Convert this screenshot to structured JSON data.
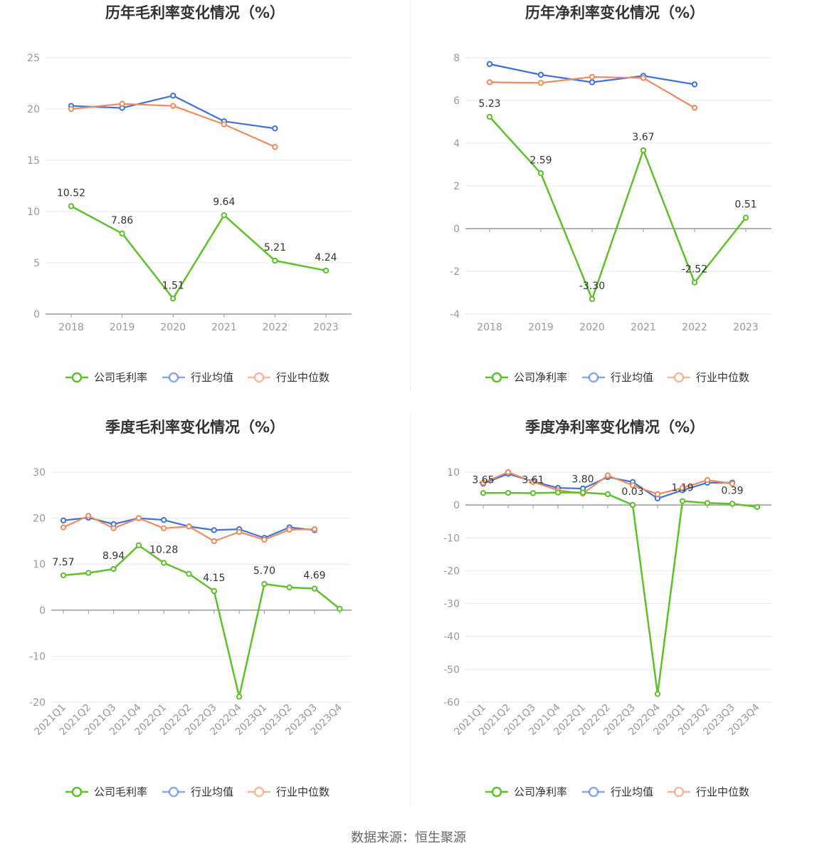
{
  "colors": {
    "company": "#5cc229",
    "avg": "#3d72e0",
    "median": "#f28a5b"
  },
  "legend_common": {
    "avg": "行业均值",
    "median": "行业中位数"
  },
  "source": "数据来源：恒生聚源",
  "chart_data": [
    {
      "type": "line",
      "title": "历年毛利率变化情况（%）",
      "x": [
        "2018",
        "2019",
        "2020",
        "2021",
        "2022",
        "2023"
      ],
      "ylim": [
        0,
        25
      ],
      "yticks": [
        0,
        5,
        10,
        15,
        20,
        25
      ],
      "grid": true,
      "legend_position": "bottom",
      "series": [
        {
          "name": "公司毛利率",
          "role": "company",
          "values": [
            10.52,
            7.86,
            1.51,
            9.64,
            5.21,
            4.24
          ],
          "labels": [
            "10.52",
            "7.86",
            "1.51",
            "9.64",
            "5.21",
            "4.24"
          ]
        },
        {
          "name": "行业均值",
          "role": "avg",
          "values": [
            20.3,
            20.1,
            21.3,
            18.8,
            18.1,
            null
          ]
        },
        {
          "name": "行业中位数",
          "role": "median",
          "values": [
            20.0,
            20.5,
            20.3,
            18.5,
            16.3,
            null
          ]
        }
      ]
    },
    {
      "type": "line",
      "title": "历年净利率变化情况（%）",
      "x": [
        "2018",
        "2019",
        "2020",
        "2021",
        "2022",
        "2023"
      ],
      "ylim": [
        -4,
        8
      ],
      "yticks": [
        -4,
        -2,
        0,
        2,
        4,
        6,
        8
      ],
      "grid": true,
      "legend_position": "bottom",
      "series": [
        {
          "name": "公司净利率",
          "role": "company",
          "values": [
            5.23,
            2.59,
            -3.3,
            3.67,
            -2.52,
            0.51
          ],
          "labels": [
            "5.23",
            "2.59",
            "-3.30",
            "3.67",
            "-2.52",
            "0.51"
          ]
        },
        {
          "name": "行业均值",
          "role": "avg",
          "values": [
            7.7,
            7.2,
            6.85,
            7.15,
            6.75,
            null
          ]
        },
        {
          "name": "行业中位数",
          "role": "median",
          "values": [
            6.85,
            6.82,
            7.1,
            7.05,
            5.65,
            null
          ]
        }
      ]
    },
    {
      "type": "line",
      "title": "季度毛利率变化情况（%）",
      "x": [
        "2021Q1",
        "2021Q2",
        "2021Q3",
        "2021Q4",
        "2022Q1",
        "2022Q2",
        "2022Q3",
        "2022Q4",
        "2023Q1",
        "2023Q2",
        "2023Q3",
        "2023Q4"
      ],
      "ylim": [
        -20,
        30
      ],
      "yticks": [
        -20,
        -10,
        0,
        10,
        20,
        30
      ],
      "grid": true,
      "legend_position": "bottom",
      "x_rotated": true,
      "series": [
        {
          "name": "公司毛利率",
          "role": "company",
          "values": [
            7.57,
            8.1,
            8.94,
            14.1,
            10.28,
            7.9,
            4.15,
            -18.8,
            5.7,
            4.95,
            4.69,
            0.3
          ],
          "labels": [
            "7.57",
            "",
            "8.94",
            "",
            "10.28",
            "",
            "4.15",
            "",
            "5.70",
            "",
            "4.69",
            ""
          ]
        },
        {
          "name": "行业均值",
          "role": "avg",
          "values": [
            19.5,
            20.1,
            18.7,
            20.0,
            19.6,
            18.2,
            17.4,
            17.6,
            15.7,
            18.0,
            17.4,
            null
          ]
        },
        {
          "name": "行业中位数",
          "role": "median",
          "values": [
            18.0,
            20.5,
            17.8,
            20.0,
            17.8,
            18.2,
            15.0,
            17.0,
            15.3,
            17.5,
            17.6,
            null
          ]
        }
      ]
    },
    {
      "type": "line",
      "title": "季度净利率变化情况（%）",
      "x": [
        "2021Q1",
        "2021Q2",
        "2021Q3",
        "2021Q4",
        "2022Q1",
        "2022Q2",
        "2022Q3",
        "2022Q4",
        "2023Q1",
        "2023Q2",
        "2023Q3",
        "2023Q4"
      ],
      "ylim": [
        -60,
        10
      ],
      "yticks": [
        -60,
        -50,
        -40,
        -30,
        -20,
        -10,
        0,
        10
      ],
      "grid": true,
      "legend_position": "bottom",
      "x_rotated": true,
      "series": [
        {
          "name": "公司净利率",
          "role": "company",
          "values": [
            3.65,
            3.7,
            3.61,
            3.8,
            3.8,
            3.3,
            0.03,
            -57.5,
            1.19,
            0.6,
            0.39,
            -0.6
          ],
          "labels": [
            "3.65",
            "",
            "3.61",
            "",
            "3.80",
            "",
            "0.03",
            "",
            "1.19",
            "",
            "0.39",
            ""
          ]
        },
        {
          "name": "行业均值",
          "role": "avg",
          "values": [
            6.5,
            9.5,
            7.2,
            5.2,
            5.0,
            8.5,
            7.0,
            2.0,
            4.5,
            6.8,
            6.8,
            null
          ]
        },
        {
          "name": "行业中位数",
          "role": "median",
          "values": [
            6.8,
            10.0,
            7.0,
            4.5,
            3.5,
            9.0,
            6.0,
            3.3,
            5.2,
            7.6,
            6.5,
            null
          ]
        }
      ]
    }
  ]
}
